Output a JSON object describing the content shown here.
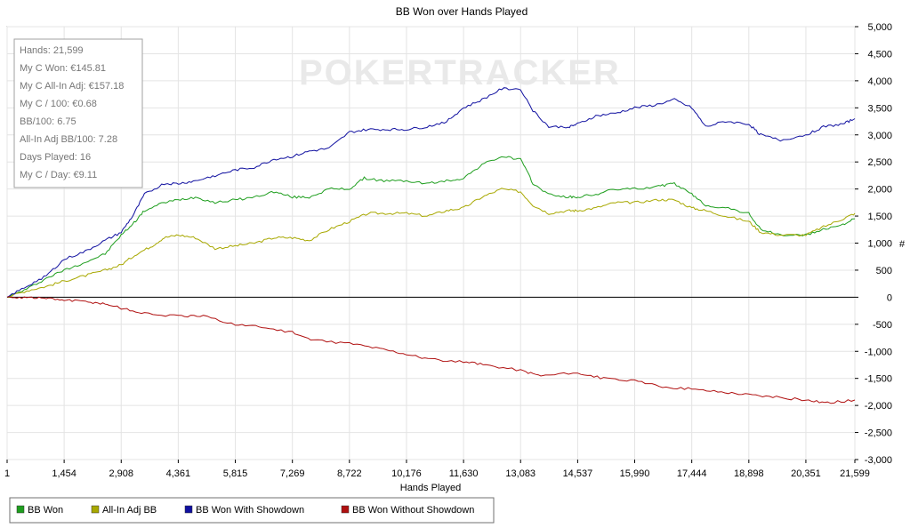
{
  "chart_data": {
    "type": "line",
    "title": "BB Won over Hands Played",
    "xlabel": "Hands Played",
    "ylabel": "#",
    "xlim": [
      1,
      21599
    ],
    "ylim": [
      -3000,
      5000
    ],
    "x_ticks": [
      1,
      1454,
      2908,
      4361,
      5815,
      7269,
      8722,
      10176,
      11630,
      13083,
      14537,
      15990,
      17444,
      18898,
      20351,
      21599
    ],
    "x_tick_labels": [
      "1",
      "1,454",
      "2,908",
      "4,361",
      "5,815",
      "7,269",
      "8,722",
      "10,176",
      "11,630",
      "13,083",
      "14,537",
      "15,990",
      "17,444",
      "18,898",
      "20,351",
      "21,599"
    ],
    "y_ticks": [
      5000,
      4500,
      4000,
      3500,
      3000,
      2500,
      2000,
      1500,
      1000,
      500,
      0,
      -500,
      -1000,
      -1500,
      -2000,
      -2500,
      -3000
    ],
    "y_tick_labels": [
      "5,000",
      "4,500",
      "4,000",
      "3,500",
      "3,000",
      "2,500",
      "2,000",
      "1,500",
      "1,000",
      "500",
      "0",
      "-500",
      "-1,000",
      "-1,500",
      "-2,000",
      "-2,500",
      "-3,000"
    ],
    "grid": true,
    "legend_position": "bottom-left",
    "series": [
      {
        "name": "BB Won",
        "color": "#1e9e1e",
        "points": [
          [
            1,
            0
          ],
          [
            500,
            150
          ],
          [
            1000,
            350
          ],
          [
            1454,
            500
          ],
          [
            2000,
            650
          ],
          [
            2500,
            800
          ],
          [
            2908,
            1150
          ],
          [
            3200,
            1350
          ],
          [
            3500,
            1600
          ],
          [
            4000,
            1750
          ],
          [
            4361,
            1800
          ],
          [
            4800,
            1850
          ],
          [
            5300,
            1750
          ],
          [
            5815,
            1800
          ],
          [
            6300,
            1850
          ],
          [
            6800,
            1950
          ],
          [
            7269,
            1850
          ],
          [
            7700,
            1850
          ],
          [
            8200,
            2000
          ],
          [
            8722,
            2000
          ],
          [
            9100,
            2200
          ],
          [
            9600,
            2150
          ],
          [
            10176,
            2150
          ],
          [
            10700,
            2100
          ],
          [
            11200,
            2150
          ],
          [
            11630,
            2200
          ],
          [
            12100,
            2450
          ],
          [
            12600,
            2600
          ],
          [
            13083,
            2550
          ],
          [
            13400,
            2100
          ],
          [
            13800,
            1900
          ],
          [
            14300,
            1850
          ],
          [
            14537,
            1850
          ],
          [
            15000,
            1900
          ],
          [
            15500,
            2000
          ],
          [
            15990,
            2000
          ],
          [
            16600,
            2050
          ],
          [
            17000,
            2100
          ],
          [
            17444,
            1900
          ],
          [
            17800,
            1700
          ],
          [
            18300,
            1650
          ],
          [
            18898,
            1550
          ],
          [
            19200,
            1250
          ],
          [
            19700,
            1150
          ],
          [
            20351,
            1150
          ],
          [
            20800,
            1250
          ],
          [
            21300,
            1350
          ],
          [
            21599,
            1450
          ]
        ]
      },
      {
        "name": "All-In Adj BB",
        "color": "#a8a800",
        "points": [
          [
            1,
            0
          ],
          [
            500,
            120
          ],
          [
            1000,
            200
          ],
          [
            1454,
            300
          ],
          [
            2000,
            400
          ],
          [
            2500,
            500
          ],
          [
            2908,
            600
          ],
          [
            3300,
            800
          ],
          [
            3700,
            950
          ],
          [
            4000,
            1100
          ],
          [
            4361,
            1150
          ],
          [
            4800,
            1100
          ],
          [
            5300,
            900
          ],
          [
            5815,
            950
          ],
          [
            6300,
            1000
          ],
          [
            6800,
            1100
          ],
          [
            7269,
            1100
          ],
          [
            7700,
            1050
          ],
          [
            8200,
            1250
          ],
          [
            8722,
            1400
          ],
          [
            9200,
            1550
          ],
          [
            9700,
            1550
          ],
          [
            10176,
            1550
          ],
          [
            10700,
            1500
          ],
          [
            11200,
            1600
          ],
          [
            11630,
            1650
          ],
          [
            12100,
            1850
          ],
          [
            12600,
            2000
          ],
          [
            13083,
            1950
          ],
          [
            13400,
            1700
          ],
          [
            13800,
            1550
          ],
          [
            14300,
            1600
          ],
          [
            14537,
            1600
          ],
          [
            15000,
            1650
          ],
          [
            15500,
            1750
          ],
          [
            15990,
            1750
          ],
          [
            16600,
            1800
          ],
          [
            17000,
            1800
          ],
          [
            17444,
            1650
          ],
          [
            17800,
            1600
          ],
          [
            18300,
            1500
          ],
          [
            18898,
            1400
          ],
          [
            19200,
            1200
          ],
          [
            19700,
            1150
          ],
          [
            20351,
            1150
          ],
          [
            20800,
            1300
          ],
          [
            21300,
            1450
          ],
          [
            21599,
            1550
          ]
        ]
      },
      {
        "name": "BB Won With Showdown",
        "color": "#1010a0",
        "points": [
          [
            1,
            0
          ],
          [
            500,
            200
          ],
          [
            1000,
            400
          ],
          [
            1454,
            700
          ],
          [
            2000,
            850
          ],
          [
            2500,
            1050
          ],
          [
            2908,
            1200
          ],
          [
            3200,
            1500
          ],
          [
            3500,
            1900
          ],
          [
            4000,
            2100
          ],
          [
            4361,
            2100
          ],
          [
            4800,
            2150
          ],
          [
            5300,
            2250
          ],
          [
            5815,
            2350
          ],
          [
            6300,
            2400
          ],
          [
            6800,
            2550
          ],
          [
            7269,
            2600
          ],
          [
            7700,
            2700
          ],
          [
            8200,
            2750
          ],
          [
            8722,
            3050
          ],
          [
            9200,
            3100
          ],
          [
            9700,
            3100
          ],
          [
            10176,
            3100
          ],
          [
            10700,
            3150
          ],
          [
            11200,
            3250
          ],
          [
            11630,
            3500
          ],
          [
            12100,
            3650
          ],
          [
            12600,
            3850
          ],
          [
            13083,
            3850
          ],
          [
            13400,
            3450
          ],
          [
            13800,
            3150
          ],
          [
            14300,
            3150
          ],
          [
            14537,
            3200
          ],
          [
            15000,
            3350
          ],
          [
            15500,
            3400
          ],
          [
            15990,
            3500
          ],
          [
            16500,
            3550
          ],
          [
            17000,
            3650
          ],
          [
            17444,
            3500
          ],
          [
            17800,
            3150
          ],
          [
            18300,
            3250
          ],
          [
            18898,
            3200
          ],
          [
            19200,
            3000
          ],
          [
            19700,
            2900
          ],
          [
            20351,
            3000
          ],
          [
            20800,
            3150
          ],
          [
            21300,
            3200
          ],
          [
            21599,
            3300
          ]
        ]
      },
      {
        "name": "BB Won Without Showdown",
        "color": "#b01010",
        "points": [
          [
            1,
            0
          ],
          [
            500,
            0
          ],
          [
            1000,
            -20
          ],
          [
            1454,
            -50
          ],
          [
            2000,
            -80
          ],
          [
            2500,
            -120
          ],
          [
            2908,
            -200
          ],
          [
            3500,
            -300
          ],
          [
            4361,
            -350
          ],
          [
            5000,
            -350
          ],
          [
            5815,
            -500
          ],
          [
            6500,
            -550
          ],
          [
            7269,
            -650
          ],
          [
            7800,
            -800
          ],
          [
            8722,
            -850
          ],
          [
            9500,
            -950
          ],
          [
            10176,
            -1050
          ],
          [
            10800,
            -1150
          ],
          [
            11630,
            -1200
          ],
          [
            12200,
            -1250
          ],
          [
            13083,
            -1350
          ],
          [
            13600,
            -1450
          ],
          [
            14537,
            -1400
          ],
          [
            15200,
            -1500
          ],
          [
            15990,
            -1550
          ],
          [
            16700,
            -1650
          ],
          [
            17444,
            -1700
          ],
          [
            18200,
            -1750
          ],
          [
            18898,
            -1800
          ],
          [
            19600,
            -1850
          ],
          [
            20351,
            -1900
          ],
          [
            20900,
            -1950
          ],
          [
            21599,
            -1900
          ]
        ]
      }
    ]
  },
  "watermark": "POKERTRACKER",
  "stats": [
    "Hands: 21,599",
    "My C Won: €145.81",
    "My C All-In Adj: €157.18",
    "My C / 100: €0.68",
    "BB/100: 6.75",
    "All-In Adj BB/100: 7.28",
    "Days Played: 16",
    "My C / Day: €9.11"
  ]
}
